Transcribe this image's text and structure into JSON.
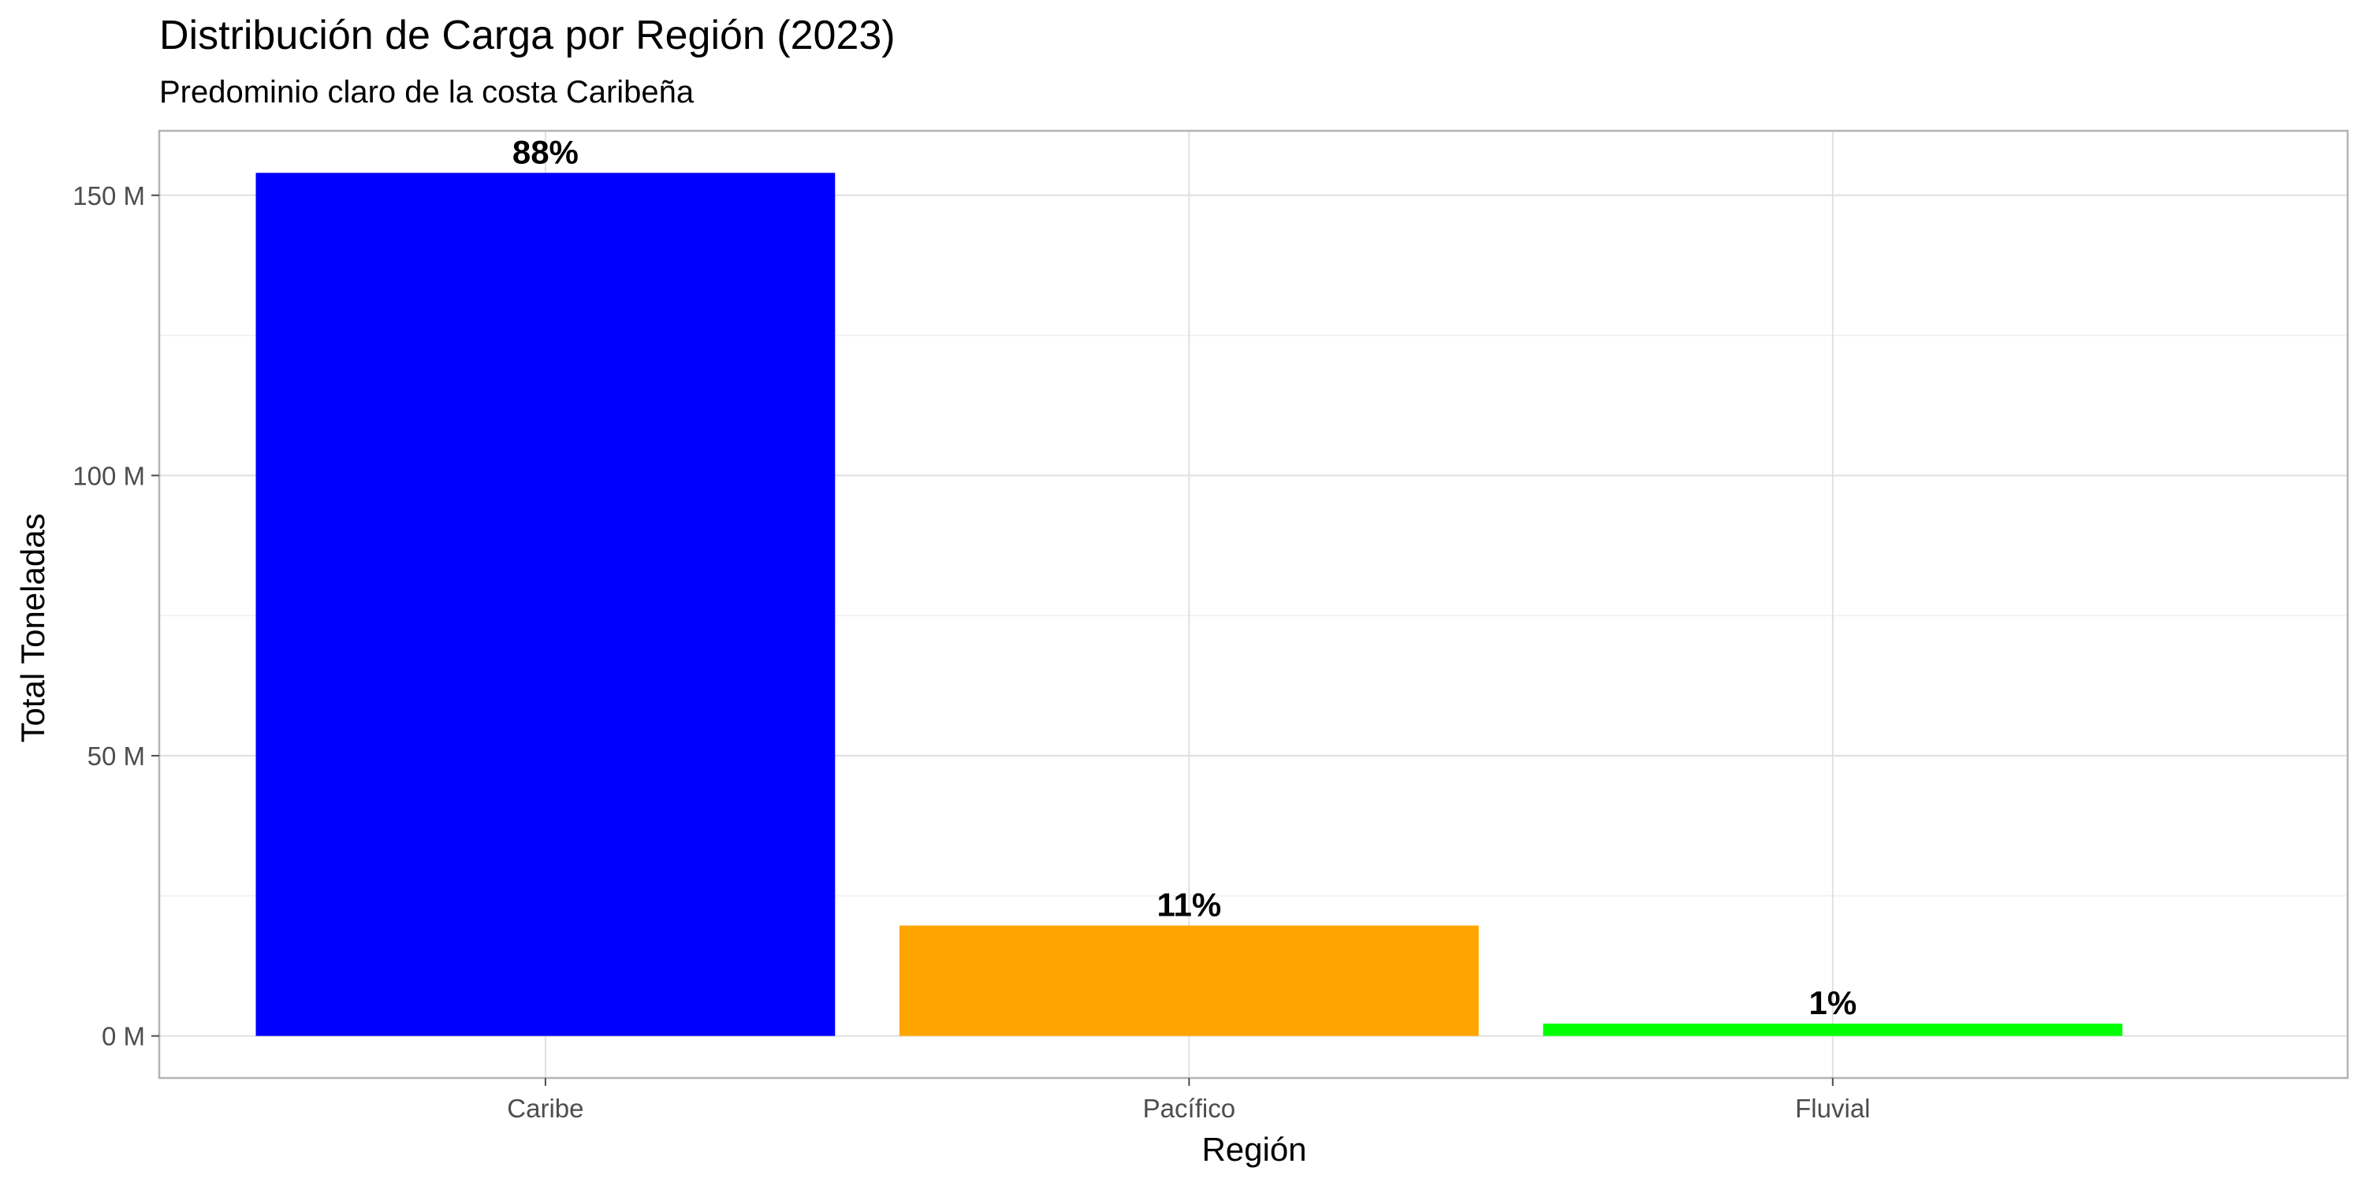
{
  "chart_data": {
    "type": "bar",
    "title": "Distribución de Carga por Región (2023)",
    "subtitle": "Predominio claro de la costa Caribeña",
    "xlabel": "Región",
    "ylabel": "Total Toneladas",
    "categories": [
      "Caribe",
      "Pacífico",
      "Fluvial"
    ],
    "values": [
      154000000,
      19700000,
      2200000
    ],
    "data_labels": [
      "88%",
      "11%",
      "1%"
    ],
    "colors": [
      "#0000FF",
      "#FFA500",
      "#00FF00"
    ],
    "ylim": [
      -7500000,
      161500000
    ],
    "y_ticks": [
      {
        "value": 0,
        "label": "0 M"
      },
      {
        "value": 50000000,
        "label": "50 M"
      },
      {
        "value": 100000000,
        "label": "100 M"
      },
      {
        "value": 150000000,
        "label": "150 M"
      }
    ],
    "y_minor_ticks": [
      25000000,
      75000000,
      125000000
    ],
    "grid": true,
    "legend": "none",
    "theme": {
      "panel_border": "#B3B3B3",
      "grid_major": "#E0E0E0",
      "grid_minor": "#EFEFEF",
      "tick_color": "#4D4D4D"
    }
  }
}
